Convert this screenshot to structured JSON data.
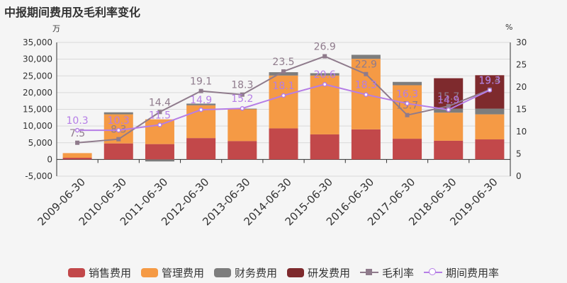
{
  "title": "中报期间费用及毛利率变化",
  "left_unit": "万",
  "right_unit": "%",
  "chart_data": {
    "type": "bar",
    "categories": [
      "2009-06-30",
      "2010-06-30",
      "2011-06-30",
      "2012-06-30",
      "2013-06-30",
      "2014-06-30",
      "2015-06-30",
      "2016-06-30",
      "2017-06-30",
      "2018-06-30",
      "2019-06-30"
    ],
    "y_left": {
      "min": -5000,
      "max": 35000,
      "ticks": [
        "-5,000",
        "0",
        "5,000",
        "10,000",
        "15,000",
        "20,000",
        "25,000",
        "30,000",
        "35,000"
      ]
    },
    "y_right": {
      "min": 0,
      "max": 30,
      "ticks": [
        "0",
        "5",
        "10",
        "15",
        "20",
        "25",
        "30"
      ]
    },
    "series": [
      {
        "name": "销售费用",
        "type": "bar",
        "color": "#c2484a",
        "values": [
          500,
          4800,
          4600,
          6400,
          5500,
          9300,
          7500,
          9000,
          6200,
          5600,
          6000
        ]
      },
      {
        "name": "管理费用",
        "type": "bar",
        "color": "#f59a45",
        "values": [
          1400,
          8700,
          7400,
          9800,
          9500,
          15800,
          17600,
          21100,
          16000,
          8400,
          7500
        ]
      },
      {
        "name": "财务费用",
        "type": "bar",
        "color": "#7d7d7d",
        "values": [
          0,
          600,
          -600,
          500,
          200,
          1000,
          700,
          1200,
          1000,
          1200,
          1700
        ]
      },
      {
        "name": "研发费用",
        "type": "bar",
        "color": "#7e2a2d",
        "values": [
          0,
          0,
          0,
          0,
          0,
          0,
          0,
          0,
          0,
          9100,
          10000
        ]
      },
      {
        "name": "毛利率",
        "type": "line",
        "color": "#8f7b8c",
        "axis": "right",
        "values": [
          7.5,
          8.3,
          14.4,
          19.1,
          18.3,
          23.5,
          26.9,
          22.9,
          13.7,
          15.7,
          19.4
        ]
      },
      {
        "name": "期间费用率",
        "type": "line",
        "color": "#b57de6",
        "axis": "right",
        "values": [
          10.3,
          10.3,
          11.5,
          14.9,
          15.2,
          18.1,
          20.6,
          18.3,
          16.3,
          14.9,
          19.3
        ]
      }
    ]
  }
}
